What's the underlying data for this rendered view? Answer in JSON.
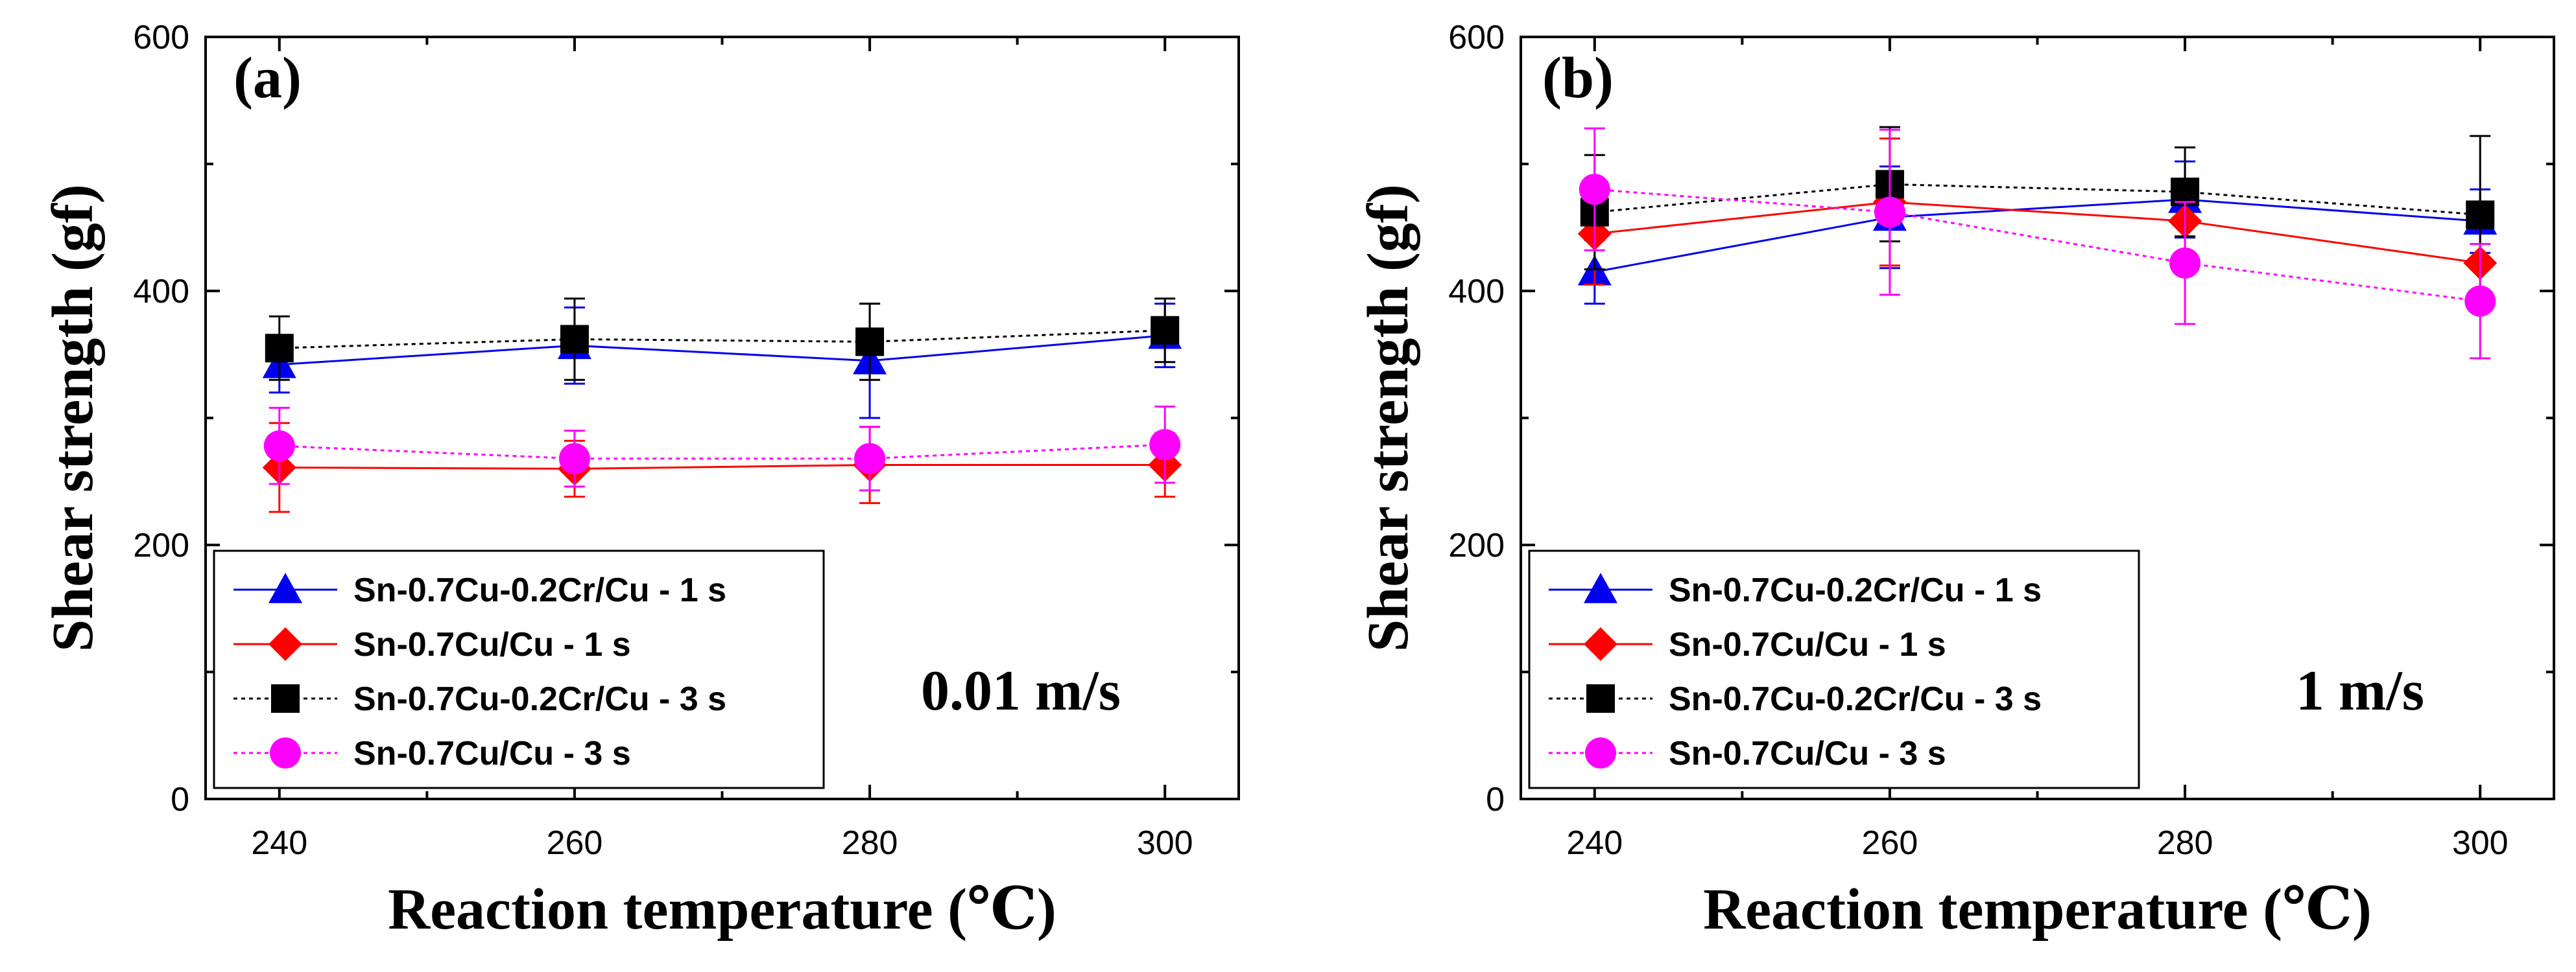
{
  "chart_data": [
    {
      "type": "line",
      "panel_label": "(a)",
      "annotation": "0.01 m/s",
      "xlabel": "Reaction temperature (℃)",
      "ylabel": "Shear strength (gf)",
      "x": [
        240,
        260,
        280,
        300
      ],
      "xticks": [
        "240",
        "260",
        "280",
        "300"
      ],
      "yticks": [
        "0",
        "200",
        "400",
        "600"
      ],
      "xlim": [
        235,
        305
      ],
      "ylim": [
        0,
        600
      ],
      "legend_position": "bottom-left",
      "series": [
        {
          "name": "Sn-0.7Cu-0.2Cr/Cu - 1 s",
          "color": "#0000ee",
          "marker": "triangle",
          "dash": "solid",
          "values": [
            342,
            357,
            345,
            365
          ],
          "err": [
            22,
            30,
            45,
            25
          ]
        },
        {
          "name": "Sn-0.7Cu/Cu - 1 s",
          "color": "#ff0000",
          "marker": "diamond",
          "dash": "solid",
          "values": [
            261,
            260,
            263,
            263
          ],
          "err": [
            35,
            22,
            30,
            25
          ]
        },
        {
          "name": "Sn-0.7Cu-0.2Cr/Cu - 3 s",
          "color": "#000000",
          "marker": "square",
          "dash": "dotted",
          "values": [
            355,
            362,
            360,
            369
          ],
          "err": [
            25,
            32,
            30,
            25
          ]
        },
        {
          "name": "Sn-0.7Cu/Cu - 3 s",
          "color": "#ff00ff",
          "marker": "circle",
          "dash": "dotted",
          "values": [
            278,
            268,
            268,
            279
          ],
          "err": [
            30,
            22,
            25,
            30
          ]
        }
      ]
    },
    {
      "type": "line",
      "panel_label": "(b)",
      "annotation": "1 m/s",
      "xlabel": "Reaction temperature (℃)",
      "ylabel": "Shear strength (gf)",
      "x": [
        240,
        260,
        280,
        300
      ],
      "xticks": [
        "240",
        "260",
        "280",
        "300"
      ],
      "yticks": [
        "0",
        "200",
        "400",
        "600"
      ],
      "xlim": [
        235,
        305
      ],
      "ylim": [
        0,
        600
      ],
      "legend_position": "bottom-left",
      "series": [
        {
          "name": "Sn-0.7Cu-0.2Cr/Cu - 1 s",
          "color": "#0000ee",
          "marker": "triangle",
          "dash": "solid",
          "values": [
            415,
            458,
            472,
            455
          ],
          "err": [
            25,
            40,
            30,
            25
          ]
        },
        {
          "name": "Sn-0.7Cu/Cu - 1 s",
          "color": "#ff0000",
          "marker": "diamond",
          "dash": "solid",
          "values": [
            445,
            470,
            455,
            422
          ],
          "err": [
            40,
            50,
            30,
            30
          ]
        },
        {
          "name": "Sn-0.7Cu-0.2Cr/Cu - 3 s",
          "color": "#000000",
          "marker": "square",
          "dash": "dotted",
          "values": [
            462,
            484,
            478,
            460
          ],
          "err": [
            45,
            45,
            35,
            62
          ]
        },
        {
          "name": "Sn-0.7Cu/Cu - 3 s",
          "color": "#ff00ff",
          "marker": "circle",
          "dash": "dotted",
          "values": [
            480,
            462,
            422,
            392
          ],
          "err": [
            48,
            65,
            48,
            45
          ]
        }
      ]
    }
  ]
}
